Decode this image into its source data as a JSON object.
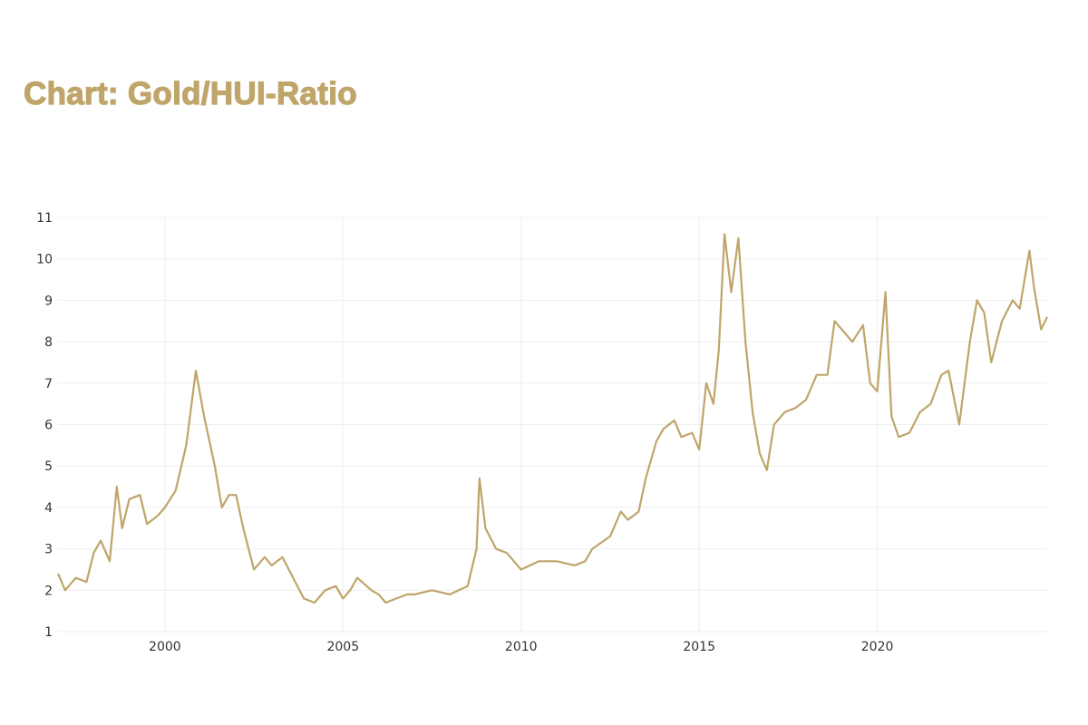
{
  "chart_data": {
    "type": "line",
    "title": "Chart: Gold/HUI-Ratio",
    "xlabel": "",
    "ylabel": "",
    "xlim": [
      1997.0,
      2024.77
    ],
    "ylim": [
      1,
      11
    ],
    "grid": true,
    "line_color": "#bfa56a",
    "x_ticks": [
      "2000",
      "2005",
      "2010",
      "2015",
      "2020"
    ],
    "y_ticks": [
      "1",
      "2",
      "3",
      "4",
      "5",
      "6",
      "7",
      "8",
      "9",
      "10",
      "11"
    ],
    "series": [
      {
        "x": [
          1997.0,
          1997.2,
          1997.5,
          1997.8,
          1998.0,
          1998.2,
          1998.45,
          1998.65,
          1998.8,
          1999.0,
          1999.3,
          1999.5,
          1999.8,
          2000.0,
          2000.3,
          2000.6,
          2000.87,
          2001.1,
          2001.4,
          2001.6,
          2001.8,
          2002.0,
          2002.2,
          2002.5,
          2002.8,
          2003.0,
          2003.3,
          2003.6,
          2003.9,
          2004.2,
          2004.5,
          2004.8,
          2005.0,
          2005.2,
          2005.4,
          2005.8,
          2006.0,
          2006.2,
          2006.5,
          2006.8,
          2007.0,
          2007.5,
          2008.0,
          2008.5,
          2008.75,
          2008.83,
          2009.0,
          2009.3,
          2009.6,
          2010.0,
          2010.5,
          2011.0,
          2011.5,
          2011.8,
          2012.0,
          2012.5,
          2012.8,
          2013.0,
          2013.3,
          2013.5,
          2013.8,
          2014.0,
          2014.3,
          2014.5,
          2014.8,
          2015.0,
          2015.2,
          2015.4,
          2015.55,
          2015.71,
          2015.9,
          2016.1,
          2016.3,
          2016.5,
          2016.7,
          2016.9,
          2017.1,
          2017.4,
          2017.7,
          2018.0,
          2018.3,
          2018.6,
          2018.8,
          2019.0,
          2019.3,
          2019.6,
          2019.8,
          2020.0,
          2020.23,
          2020.4,
          2020.6,
          2020.9,
          2021.2,
          2021.5,
          2021.8,
          2022.0,
          2022.3,
          2022.6,
          2022.8,
          2023.0,
          2023.2,
          2023.5,
          2023.8,
          2024.0,
          2024.27,
          2024.4,
          2024.6,
          2024.77
        ],
        "values": [
          2.4,
          2.0,
          2.3,
          2.2,
          2.9,
          3.2,
          2.7,
          4.5,
          3.5,
          4.2,
          4.3,
          3.6,
          3.8,
          4.0,
          4.4,
          5.5,
          7.3,
          6.2,
          5.0,
          4.0,
          4.3,
          4.3,
          3.5,
          2.5,
          2.8,
          2.6,
          2.8,
          2.3,
          1.8,
          1.7,
          2.0,
          2.1,
          1.8,
          2.0,
          2.3,
          2.0,
          1.9,
          1.7,
          1.8,
          1.9,
          1.9,
          2.0,
          1.9,
          2.1,
          3.0,
          4.7,
          3.5,
          3.0,
          2.9,
          2.5,
          2.7,
          2.7,
          2.6,
          2.7,
          3.0,
          3.3,
          3.9,
          3.7,
          3.9,
          4.7,
          5.6,
          5.9,
          6.1,
          5.7,
          5.8,
          5.4,
          7.0,
          6.5,
          7.8,
          10.6,
          9.2,
          10.5,
          8.0,
          6.3,
          5.3,
          4.9,
          6.0,
          6.3,
          6.4,
          6.6,
          7.2,
          7.2,
          8.5,
          8.3,
          8.0,
          8.4,
          7.0,
          6.8,
          9.2,
          6.2,
          5.7,
          5.8,
          6.3,
          6.5,
          7.2,
          7.3,
          6.0,
          8.0,
          9.0,
          8.7,
          7.5,
          8.5,
          9.0,
          8.8,
          10.2,
          9.3,
          8.3,
          8.6
        ]
      }
    ]
  }
}
